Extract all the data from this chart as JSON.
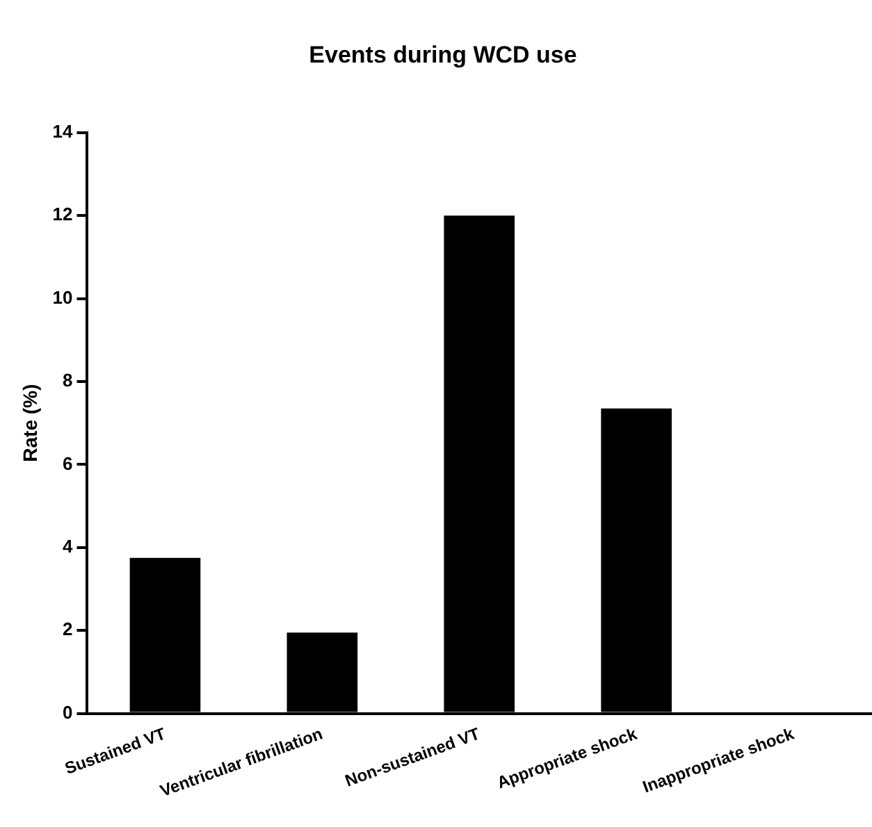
{
  "chart_data": {
    "type": "bar",
    "title": "Events during WCD use",
    "ylabel": "Rate (%)",
    "categories": [
      "Sustained VT",
      "Ventricular fibrillation",
      "Non-sustained VT",
      "Appropriate shock",
      "Inappropriate shock"
    ],
    "values": [
      3.75,
      1.95,
      12,
      7.35,
      0
    ],
    "color": "#000000",
    "ylim": [
      0,
      14
    ],
    "yticks": [
      0,
      2,
      4,
      6,
      8,
      10,
      12,
      14
    ],
    "grid": false,
    "legend": false
  }
}
